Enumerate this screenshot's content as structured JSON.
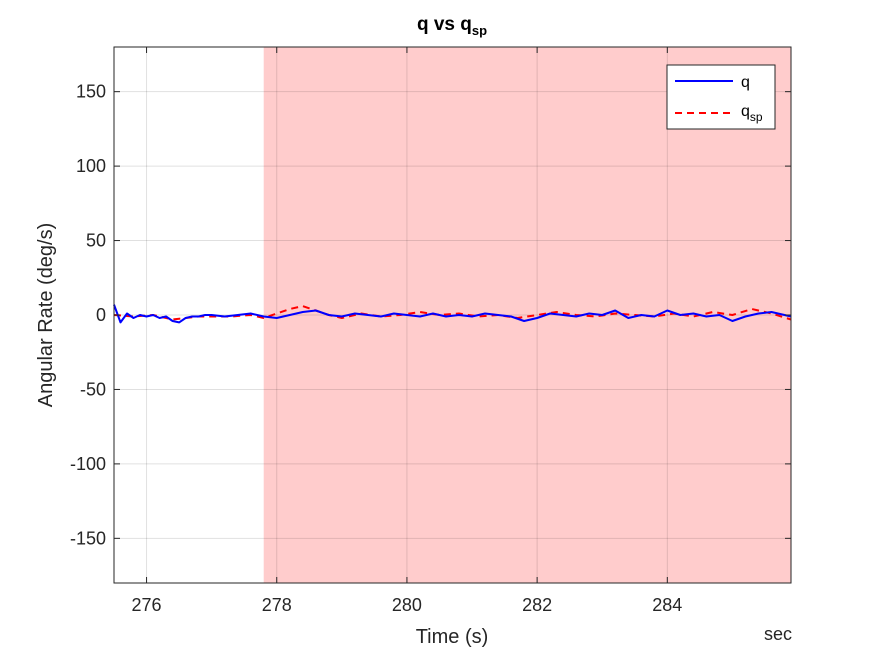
{
  "chart_data": {
    "type": "line",
    "title": {
      "main": "q vs q",
      "sub": "sp"
    },
    "xlabel": "Time (s)",
    "ylabel": "Angular Rate (deg/s)",
    "unit_note": "sec",
    "xlim": [
      275.5,
      285.9
    ],
    "ylim": [
      -180,
      180
    ],
    "xticks": [
      276,
      278,
      280,
      282,
      284
    ],
    "yticks": [
      150,
      100,
      50,
      0,
      -50,
      -100,
      -150
    ],
    "grid": true,
    "legend": {
      "position": "top-right"
    },
    "shaded_region": {
      "x_start": 277.8,
      "x_end": 285.9,
      "color": "#ffcccc"
    },
    "series": [
      {
        "name": {
          "main": "q",
          "sub": ""
        },
        "color": "#0000ff",
        "style": "solid",
        "x": [
          275.5,
          275.6,
          275.7,
          275.8,
          275.9,
          276.0,
          276.1,
          276.2,
          276.3,
          276.4,
          276.5,
          276.6,
          276.7,
          276.8,
          276.9,
          277.0,
          277.2,
          277.4,
          277.6,
          277.8,
          278.0,
          278.2,
          278.4,
          278.6,
          278.8,
          279.0,
          279.2,
          279.4,
          279.6,
          279.8,
          280.0,
          280.2,
          280.4,
          280.6,
          280.8,
          281.0,
          281.2,
          281.4,
          281.6,
          281.8,
          282.0,
          282.2,
          282.4,
          282.6,
          282.8,
          283.0,
          283.2,
          283.4,
          283.6,
          283.8,
          284.0,
          284.2,
          284.4,
          284.6,
          284.8,
          285.0,
          285.2,
          285.4,
          285.6,
          285.8,
          285.9
        ],
        "y": [
          7,
          -5,
          1,
          -2,
          0,
          -1,
          0,
          -2,
          -1,
          -4,
          -5,
          -2,
          -1,
          -1,
          0,
          0,
          -1,
          0,
          1,
          -1,
          -2,
          0,
          2,
          3,
          0,
          -1,
          1,
          0,
          -1,
          1,
          0,
          -1,
          1,
          -1,
          0,
          -1,
          1,
          0,
          -1,
          -4,
          -2,
          1,
          0,
          -1,
          1,
          0,
          3,
          -2,
          0,
          -1,
          3,
          0,
          1,
          -1,
          0,
          -4,
          -1,
          1,
          2,
          0,
          -1
        ]
      },
      {
        "name": {
          "main": "q",
          "sub": "sp"
        },
        "color": "#ff0000",
        "style": "dashed",
        "x": [
          275.5,
          275.8,
          276.1,
          276.4,
          276.6,
          276.8,
          277.0,
          277.3,
          277.6,
          277.8,
          278.0,
          278.2,
          278.4,
          278.6,
          278.8,
          279.0,
          279.3,
          279.6,
          279.9,
          280.2,
          280.5,
          280.8,
          281.1,
          281.4,
          281.7,
          282.0,
          282.3,
          282.6,
          282.9,
          283.2,
          283.5,
          283.8,
          284.1,
          284.4,
          284.7,
          285.0,
          285.3,
          285.6,
          285.9
        ],
        "y": [
          0,
          -1,
          0,
          -3,
          -2,
          -1,
          -1,
          -1,
          0,
          -2,
          1,
          4,
          6,
          3,
          0,
          -2,
          1,
          -1,
          0,
          2,
          0,
          1,
          -1,
          0,
          -2,
          0,
          2,
          0,
          -1,
          1,
          0,
          -1,
          1,
          -1,
          2,
          0,
          4,
          1,
          -3
        ]
      }
    ]
  }
}
